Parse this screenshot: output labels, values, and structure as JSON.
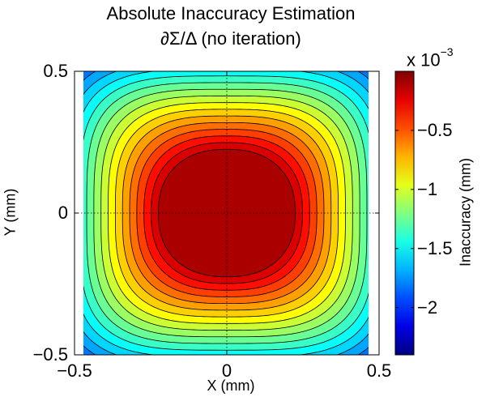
{
  "chart_data": {
    "type": "heatmap",
    "subtype": "filled-contour",
    "title": "Absolute Inaccuracy Estimation",
    "subtitle": "∂Σ/Δ (no iteration)",
    "xlabel": "X (mm)",
    "ylabel": "Y (mm)",
    "xlim": [
      -0.5,
      0.5
    ],
    "ylim": [
      -0.5,
      0.5
    ],
    "xticks": [
      -0.5,
      0,
      0.5
    ],
    "yticks": [
      -0.5,
      0,
      0.5
    ],
    "xtick_labels": [
      "−0.5",
      "0",
      "0.5"
    ],
    "ytick_labels": [
      "−0.5",
      "0",
      "0.5"
    ],
    "data_xlim": [
      -0.48,
      0.48
    ],
    "grid": "dotted lines at x=0 and y=0",
    "colormap": "jet",
    "colorbar": {
      "label": "Inaccuracy (mm)",
      "multiplier_base": "x 10",
      "multiplier_exp": "−3",
      "range": [
        -2.4,
        0
      ],
      "ticks": [
        -0.5,
        -1,
        -1.5,
        -2
      ],
      "tick_labels": [
        "−0.5",
        "−1",
        "−1.5",
        "−2"
      ]
    },
    "contour_levels_count": 20,
    "values_at_points": [
      {
        "x": 0,
        "y": 0,
        "value": -0.1
      },
      {
        "x": 0.25,
        "y": 0,
        "value": -0.25
      },
      {
        "x": 0.48,
        "y": 0,
        "value": -0.95
      },
      {
        "x": 0,
        "y": 0.5,
        "value": -1.0
      },
      {
        "x": 0.48,
        "y": 0.5,
        "value": -2.4
      },
      {
        "x": -0.48,
        "y": -0.5,
        "value": -2.4
      }
    ]
  }
}
